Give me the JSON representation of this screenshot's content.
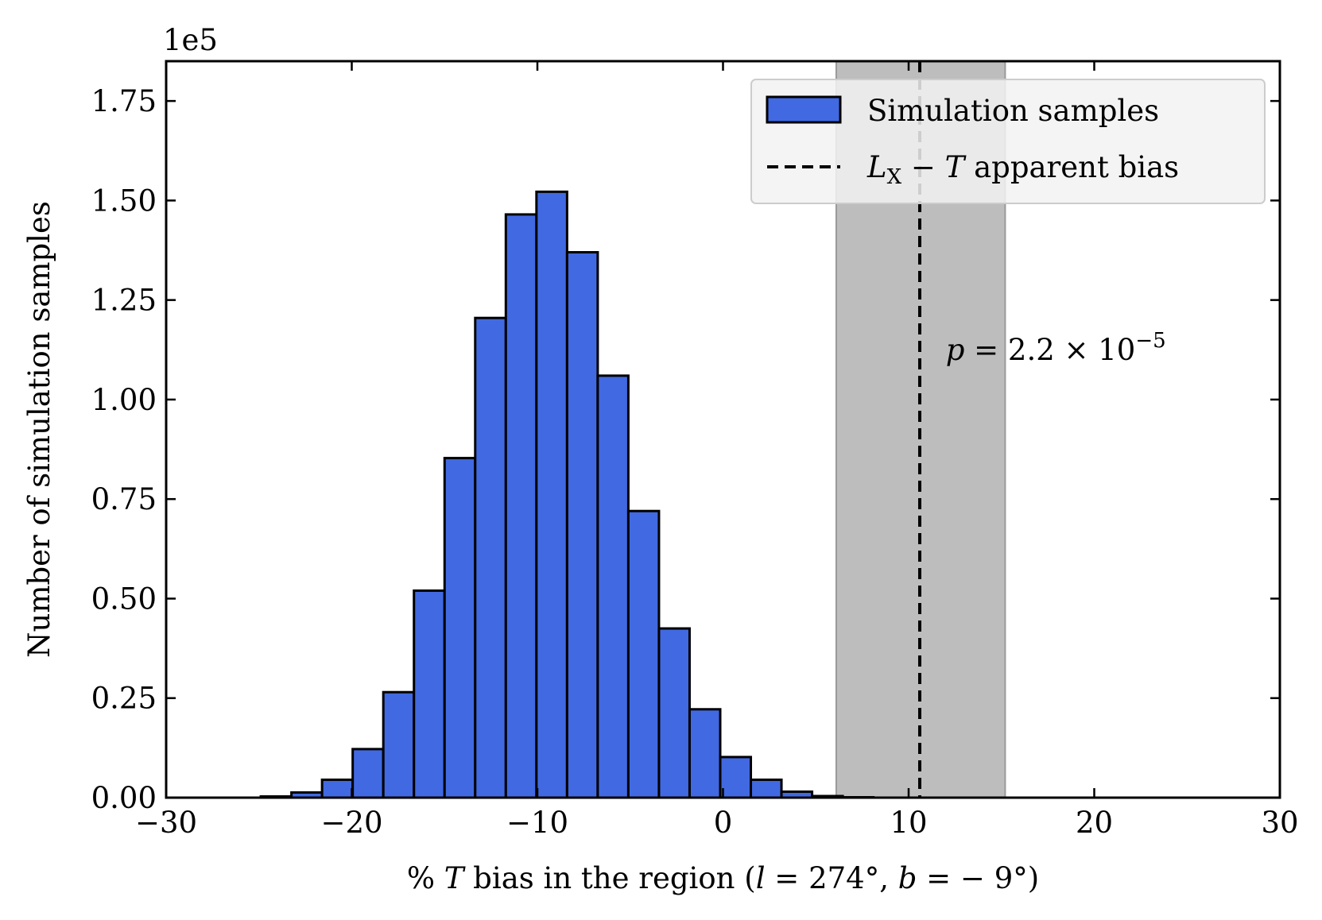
{
  "chart_data": {
    "type": "bar",
    "subtype": "histogram",
    "xlabel": "% T bias in the region (l = 274°, b = −9°)",
    "ylabel": "Number of simulation samples",
    "y_scale_multiplier": "1e5",
    "xlim": [
      -30,
      30
    ],
    "ylim": [
      0,
      1.85
    ],
    "x_ticks": [
      -30,
      -20,
      -10,
      0,
      10,
      20,
      30
    ],
    "x_tick_labels": [
      "−30",
      "−20",
      "−10",
      "0",
      "10",
      "20",
      "30"
    ],
    "y_ticks": [
      0,
      0.25,
      0.5,
      0.75,
      1.0,
      1.25,
      1.5,
      1.75
    ],
    "y_tick_labels": [
      "0.00",
      "0.25",
      "0.50",
      "0.75",
      "1.00",
      "1.25",
      "1.50",
      "1.75"
    ],
    "grid": false,
    "legend_position": "top-right",
    "series": [
      {
        "name": "Simulation samples",
        "color": "#4169e1",
        "edge_color": "#000000",
        "bin_edges": [
          -24.9,
          -23.25,
          -21.6,
          -19.95,
          -18.3,
          -16.65,
          -15.0,
          -13.35,
          -11.7,
          -10.05,
          -8.4,
          -6.75,
          -5.1,
          -3.45,
          -1.8,
          -0.15,
          1.5,
          3.15,
          4.8,
          6.45,
          8.1
        ],
        "values": [
          0.003,
          0.013,
          0.045,
          0.122,
          0.265,
          0.52,
          0.853,
          1.205,
          1.465,
          1.522,
          1.37,
          1.06,
          0.72,
          0.425,
          0.222,
          0.102,
          0.045,
          0.015,
          0.004,
          0.001
        ]
      }
    ],
    "reference_line": {
      "name": "L_X − T apparent bias",
      "x": 10.6,
      "style": "dashed",
      "color": "#000000"
    },
    "shaded_band": {
      "x_range": [
        6.1,
        15.2
      ],
      "color": "#bdbdbd"
    },
    "annotation": {
      "text": "p = 2.2 × 10⁻⁵",
      "x": 12.0,
      "y": 1.1
    }
  }
}
